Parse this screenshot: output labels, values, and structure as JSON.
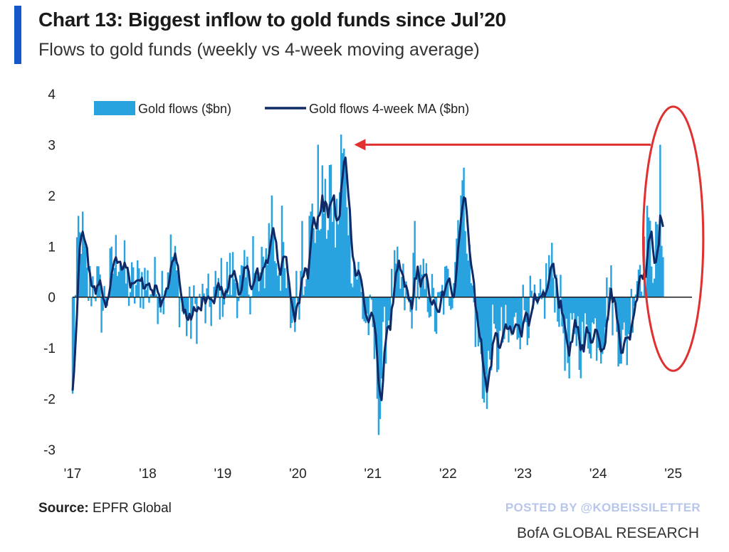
{
  "header": {
    "title": "Chart 13: Biggest inflow to gold funds since Jul’20",
    "subtitle": "Flows to gold funds (weekly vs 4-week moving average)"
  },
  "footer": {
    "source_label": "Source:",
    "source_value": "EPFR Global",
    "posted_by": "POSTED BY @KOBEISSILETTER",
    "brand": "BofA GLOBAL RESEARCH"
  },
  "colors": {
    "bars": "#29a3e0",
    "ma_line": "#0f2a66",
    "arrow": "#e03030",
    "ellipse": "#e03030",
    "title_bar": "#1656c8"
  },
  "chart_data": {
    "type": "bar",
    "title": "Chart 13: Biggest inflow to gold funds since Jul’20",
    "subtitle": "Flows to gold funds (weekly vs 4-week moving average)",
    "xlabel": "",
    "ylabel": "",
    "ylim": [
      -3,
      4
    ],
    "yticks": [
      -3,
      -2,
      -1,
      0,
      1,
      2,
      3,
      4
    ],
    "xlim": [
      2017,
      2025.25
    ],
    "xticks": [
      {
        "value": 2017,
        "label": "'17"
      },
      {
        "value": 2018,
        "label": "'18"
      },
      {
        "value": 2019,
        "label": "'19"
      },
      {
        "value": 2020,
        "label": "'20"
      },
      {
        "value": 2021,
        "label": "'21"
      },
      {
        "value": 2022,
        "label": "'22"
      },
      {
        "value": 2023,
        "label": "'23"
      },
      {
        "value": 2024,
        "label": "'24"
      },
      {
        "value": 2025,
        "label": "'25"
      }
    ],
    "legend": {
      "position": "top-left",
      "entries": [
        "Gold flows ($bn)",
        "Gold flows 4-week MA ($bn)"
      ]
    },
    "grid": false,
    "anchors": [
      [
        2017.0,
        -1.5
      ],
      [
        2017.05,
        0.3
      ],
      [
        2017.12,
        1.1
      ],
      [
        2017.2,
        0.1
      ],
      [
        2017.3,
        0.3
      ],
      [
        2017.4,
        -0.2
      ],
      [
        2017.5,
        0.3
      ],
      [
        2017.62,
        0.8
      ],
      [
        2017.72,
        0.2
      ],
      [
        2017.82,
        0.1
      ],
      [
        2017.92,
        0.3
      ],
      [
        2018.0,
        0.2
      ],
      [
        2018.15,
        0.1
      ],
      [
        2018.25,
        0.4
      ],
      [
        2018.32,
        0.7
      ],
      [
        2018.4,
        0.2
      ],
      [
        2018.5,
        -0.4
      ],
      [
        2018.6,
        -0.3
      ],
      [
        2018.7,
        -0.1
      ],
      [
        2018.8,
        -0.2
      ],
      [
        2018.95,
        0.1
      ],
      [
        2019.05,
        0.2
      ],
      [
        2019.15,
        0.4
      ],
      [
        2019.22,
        0.1
      ],
      [
        2019.3,
        0.2
      ],
      [
        2019.38,
        0.3
      ],
      [
        2019.48,
        0.1
      ],
      [
        2019.55,
        0.5
      ],
      [
        2019.62,
        1.0
      ],
      [
        2019.7,
        0.7
      ],
      [
        2019.78,
        0.5
      ],
      [
        2019.85,
        0.1
      ],
      [
        2019.92,
        -0.4
      ],
      [
        2020.0,
        0.1
      ],
      [
        2020.1,
        0.6
      ],
      [
        2020.2,
        1.3
      ],
      [
        2020.27,
        1.0
      ],
      [
        2020.32,
        1.7
      ],
      [
        2020.38,
        1.2
      ],
      [
        2020.45,
        1.6
      ],
      [
        2020.5,
        1.0
      ],
      [
        2020.55,
        1.5
      ],
      [
        2020.6,
        2.3
      ],
      [
        2020.66,
        1.6
      ],
      [
        2020.72,
        0.6
      ],
      [
        2020.8,
        0.4
      ],
      [
        2020.88,
        -0.3
      ],
      [
        2020.95,
        -0.4
      ],
      [
        2021.0,
        -0.6
      ],
      [
        2021.08,
        -1.7
      ],
      [
        2021.14,
        -0.8
      ],
      [
        2021.2,
        -0.3
      ],
      [
        2021.3,
        0.3
      ],
      [
        2021.4,
        0.1
      ],
      [
        2021.5,
        -0.3
      ],
      [
        2021.55,
        0.4
      ],
      [
        2021.65,
        0.1
      ],
      [
        2021.75,
        0.1
      ],
      [
        2021.85,
        -0.4
      ],
      [
        2021.95,
        0.1
      ],
      [
        2022.05,
        0.2
      ],
      [
        2022.12,
        1.0
      ],
      [
        2022.18,
        1.9
      ],
      [
        2022.25,
        1.2
      ],
      [
        2022.3,
        0.3
      ],
      [
        2022.38,
        -0.5
      ],
      [
        2022.45,
        -1.1
      ],
      [
        2022.52,
        -1.4
      ],
      [
        2022.58,
        -0.6
      ],
      [
        2022.65,
        -0.9
      ],
      [
        2022.72,
        -0.6
      ],
      [
        2022.82,
        -0.7
      ],
      [
        2022.9,
        -0.5
      ],
      [
        2023.0,
        -0.2
      ],
      [
        2023.1,
        -0.2
      ],
      [
        2023.18,
        -0.4
      ],
      [
        2023.25,
        -0.2
      ],
      [
        2023.35,
        0.5
      ],
      [
        2023.42,
        0.3
      ],
      [
        2023.5,
        -0.2
      ],
      [
        2023.6,
        -1.0
      ],
      [
        2023.7,
        -0.4
      ],
      [
        2023.78,
        -0.8
      ],
      [
        2023.88,
        -0.5
      ],
      [
        2023.95,
        -0.5
      ],
      [
        2024.05,
        -0.6
      ],
      [
        2024.15,
        0.2
      ],
      [
        2024.22,
        -0.3
      ],
      [
        2024.3,
        -0.7
      ],
      [
        2024.38,
        -0.8
      ],
      [
        2024.45,
        -0.1
      ],
      [
        2024.55,
        0.6
      ],
      [
        2024.62,
        0.5
      ],
      [
        2024.7,
        0.9
      ],
      [
        2024.75,
        0.6
      ],
      [
        2024.8,
        0.9
      ],
      [
        2024.87,
        1.1
      ]
    ],
    "spikes": [
      [
        2020.58,
        3.2
      ],
      [
        2020.27,
        3.0
      ],
      [
        2020.42,
        2.6
      ],
      [
        2019.65,
        2.0
      ],
      [
        2019.78,
        1.8
      ],
      [
        2022.2,
        2.3
      ],
      [
        2021.1,
        -2.4
      ],
      [
        2021.05,
        -2.0
      ],
      [
        2022.52,
        -2.2
      ],
      [
        2022.47,
        -2.0
      ],
      [
        2024.83,
        3.0
      ],
      [
        2024.65,
        1.8
      ],
      [
        2017.07,
        1.6
      ],
      [
        2017.0,
        -1.9
      ],
      [
        2023.62,
        -1.6
      ],
      [
        2020.05,
        1.5
      ],
      [
        2019.4,
        1.2
      ],
      [
        2021.55,
        1.5
      ]
    ],
    "annotations": [
      {
        "type": "arrow",
        "from": [
          2024.7,
          3.0
        ],
        "to": [
          2020.75,
          3.0
        ]
      },
      {
        "type": "ellipse",
        "center": [
          2025.0,
          1.15
        ],
        "radii": [
          0.4,
          2.6
        ]
      }
    ]
  }
}
